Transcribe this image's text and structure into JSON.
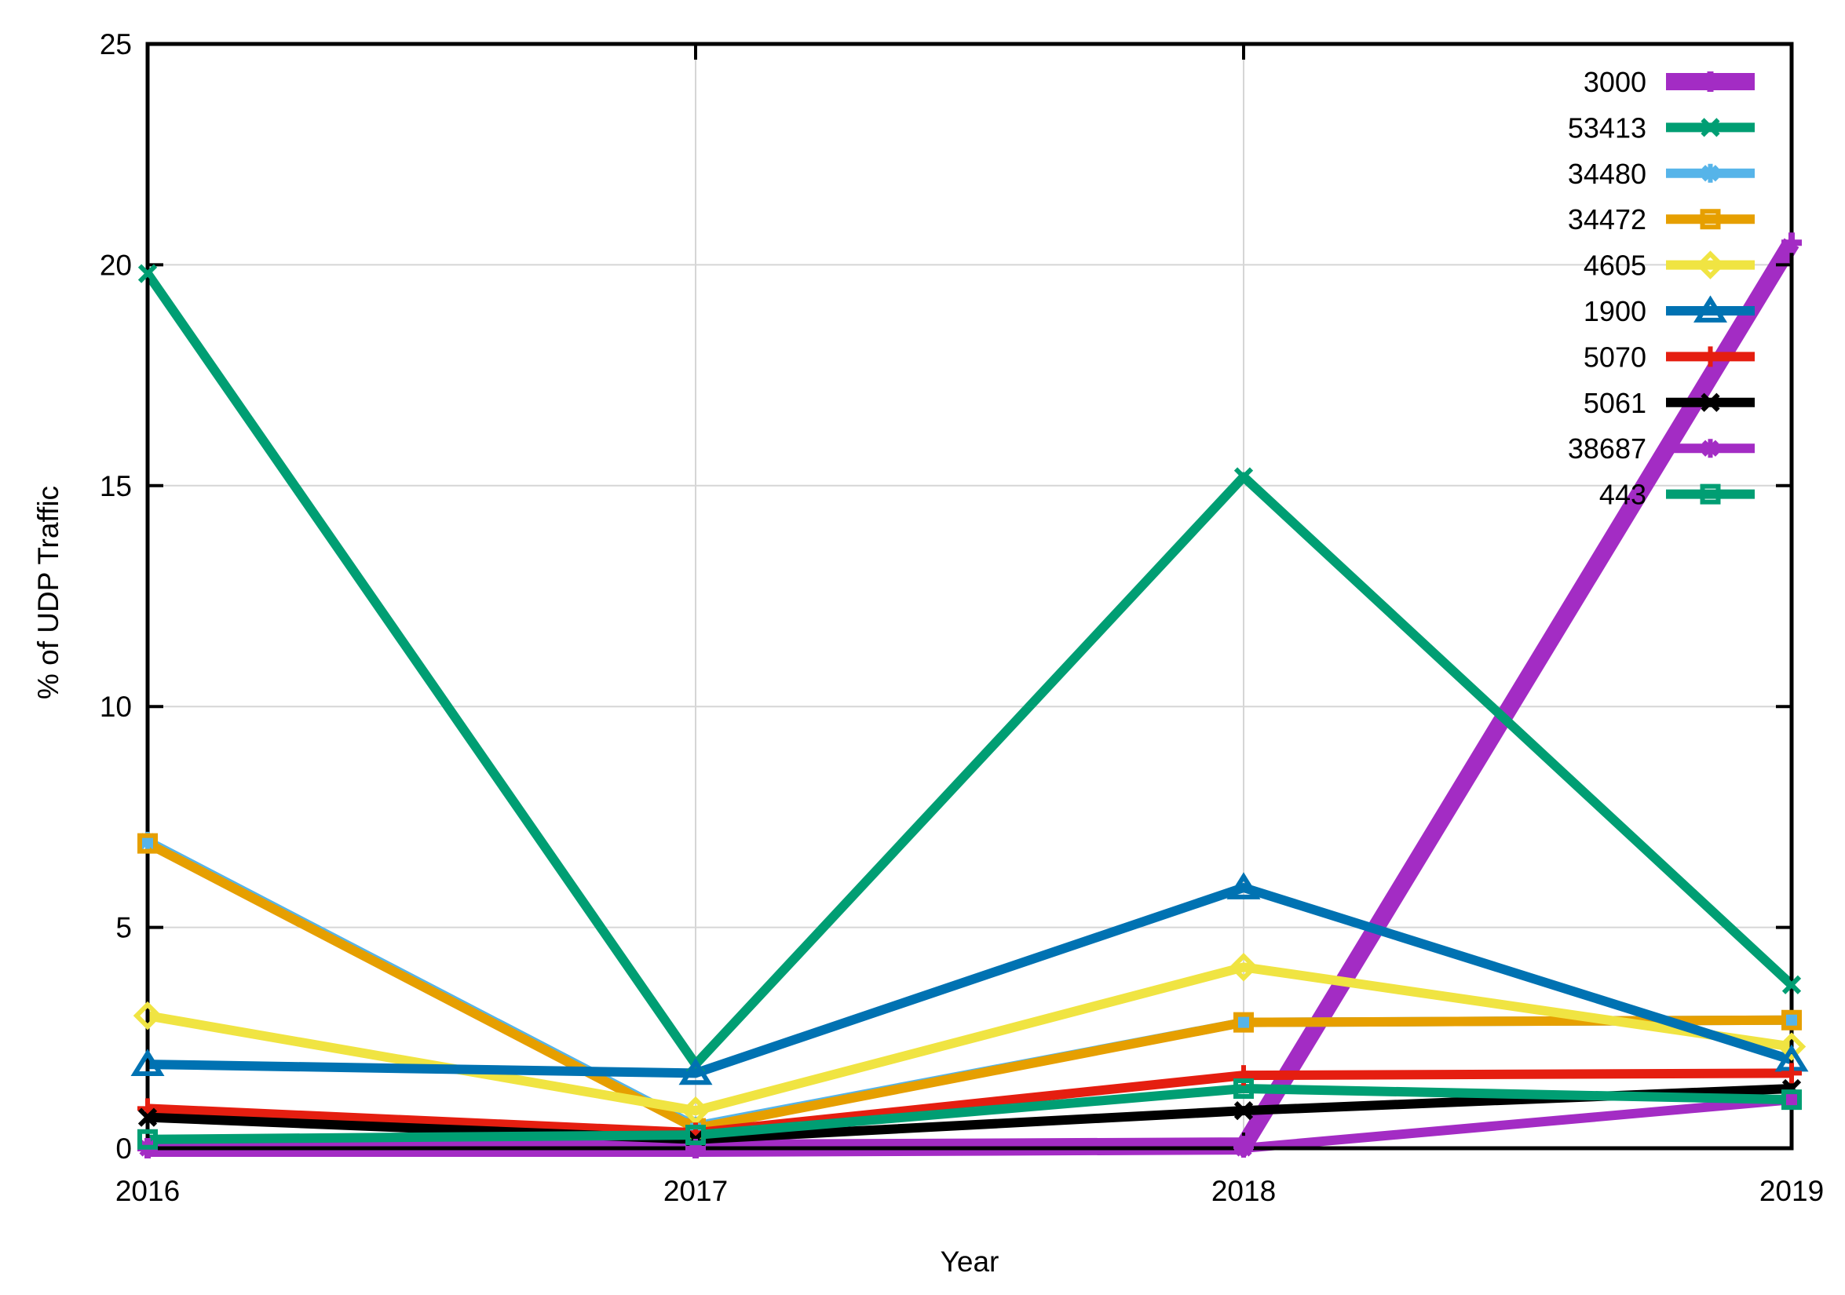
{
  "page": {
    "background": "#FFFFFF"
  },
  "chart_data": {
    "type": "line",
    "title": "",
    "xlabel": "Year",
    "ylabel": "% of UDP Traffic",
    "x": [
      2016,
      2017,
      2018,
      2019
    ],
    "xtick_labels": [
      "2016",
      "2017",
      "2018",
      "2019"
    ],
    "ytick_labels": [
      "0",
      "5",
      "10",
      "15",
      "20",
      "25"
    ],
    "yticks": [
      0,
      5,
      10,
      15,
      20,
      25
    ],
    "xlim": [
      2016,
      2019
    ],
    "ylim": [
      0,
      25
    ],
    "grid": true,
    "grid_color": "#D6D6D6",
    "axis_color": "#000000",
    "legend_position": "top-right-inside",
    "series": [
      {
        "name": "3000",
        "color": "#A32CC4",
        "marker": "plus",
        "line_width": 22,
        "values": [
          0,
          0,
          0.05,
          20.5
        ]
      },
      {
        "name": "53413",
        "color": "#009E73",
        "marker": "cross",
        "line_width": 12,
        "values": [
          19.8,
          1.9,
          15.2,
          3.7
        ]
      },
      {
        "name": "34480",
        "color": "#56B4E9",
        "marker": "asterisk",
        "line_width": 12,
        "values": [
          6.95,
          0.5,
          2.85,
          2.9
        ]
      },
      {
        "name": "34472",
        "color": "#E69F00",
        "marker": "square-open",
        "line_width": 12,
        "values": [
          6.9,
          0.45,
          2.85,
          2.9
        ]
      },
      {
        "name": "4605",
        "color": "#F0E442",
        "marker": "diamond-open",
        "line_width": 12,
        "values": [
          3.0,
          0.85,
          4.1,
          2.3
        ]
      },
      {
        "name": "1900",
        "color": "#0072B2",
        "marker": "triangle-open",
        "line_width": 12,
        "values": [
          1.9,
          1.7,
          5.9,
          2.0
        ]
      },
      {
        "name": "5070",
        "color": "#E51E10",
        "marker": "plus",
        "line_width": 12,
        "values": [
          0.9,
          0.35,
          1.65,
          1.7
        ]
      },
      {
        "name": "5061",
        "color": "#000000",
        "marker": "cross",
        "line_width": 12,
        "values": [
          0.7,
          0.2,
          0.85,
          1.35
        ]
      },
      {
        "name": "38687",
        "color": "#A32CC4",
        "marker": "asterisk",
        "line_width": 12,
        "values": [
          0,
          0,
          0,
          1.1
        ]
      },
      {
        "name": "443",
        "color": "#009E73",
        "marker": "square-open",
        "line_width": 12,
        "values": [
          0.2,
          0.3,
          1.35,
          1.1
        ]
      }
    ]
  }
}
